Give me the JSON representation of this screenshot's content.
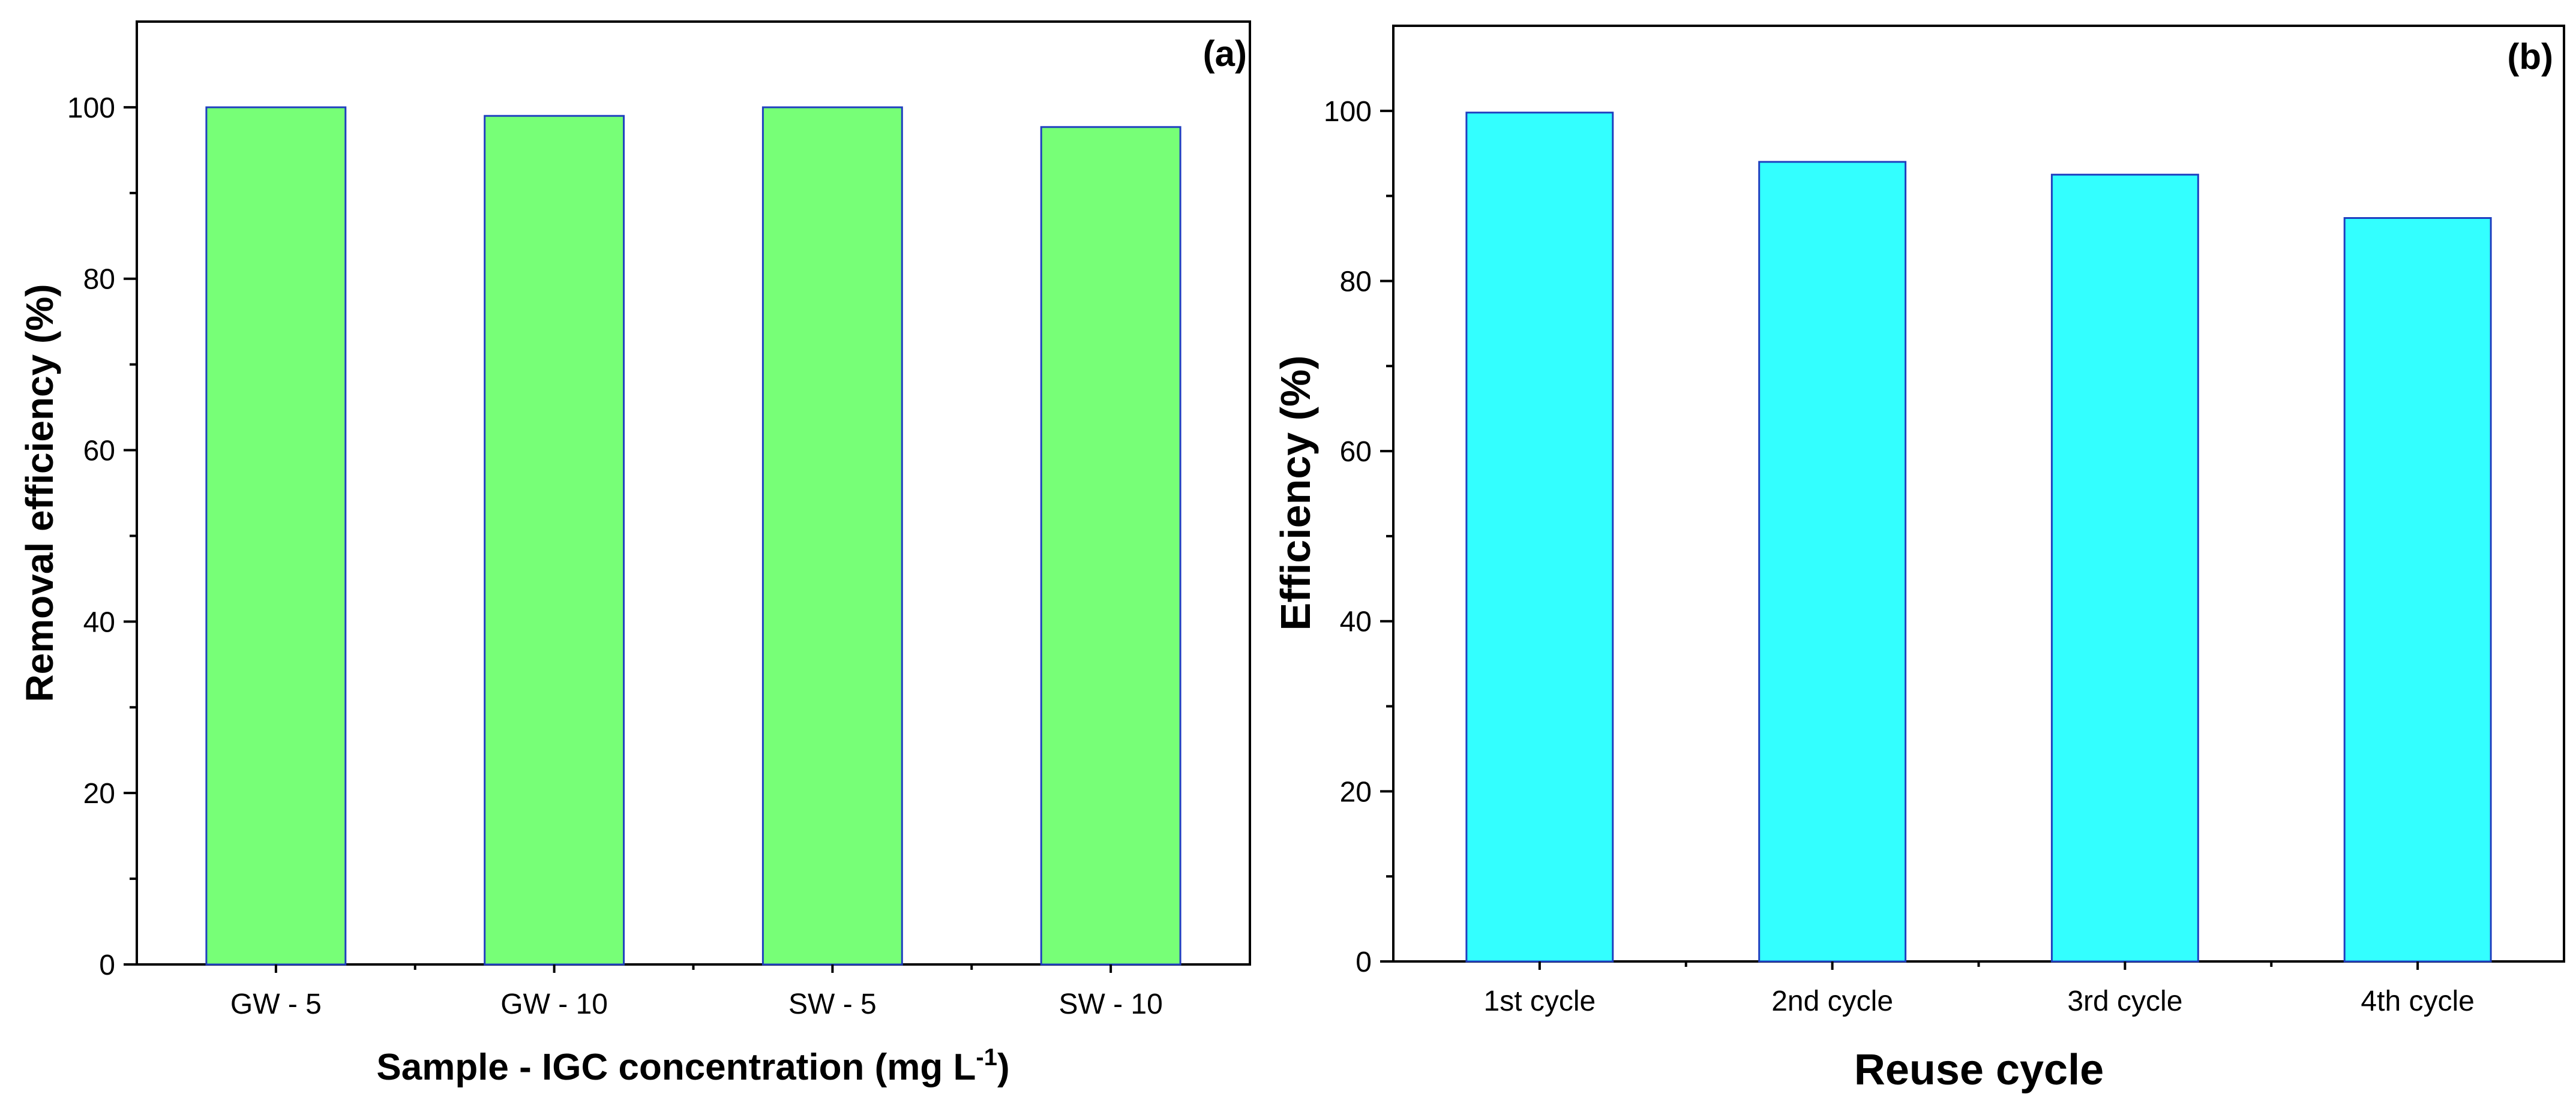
{
  "chart_data": [
    {
      "panel": "(a)",
      "type": "bar",
      "categories": [
        "GW - 5",
        "GW - 10",
        "SW - 5",
        "SW - 10"
      ],
      "values": [
        100,
        99,
        100,
        97.7
      ],
      "xlabel": "Sample - IGC concentration (mg L",
      "xlabel_unit_sup": "-1",
      "xlabel_close": ")",
      "ylabel": "Removal efficiency (%)",
      "ylim": [
        0,
        110
      ],
      "yticks": [
        0,
        20,
        40,
        60,
        80,
        100
      ],
      "bar_color": "#77ff77",
      "bar_edge_color": "#1f3fbf",
      "grid": false,
      "legend": "none"
    },
    {
      "panel": "(b)",
      "type": "bar",
      "categories": [
        "1st cycle",
        "2nd cycle",
        "3rd cycle",
        "4th cycle"
      ],
      "values": [
        99.8,
        94,
        92.5,
        87.4
      ],
      "xlabel": "Reuse cycle",
      "ylabel": "Efficiency (%)",
      "ylim": [
        0,
        110
      ],
      "yticks": [
        0,
        20,
        40,
        60,
        80,
        100
      ],
      "bar_color": "#33ffff",
      "bar_edge_color": "#1f3fbf",
      "grid": false,
      "legend": "none"
    }
  ]
}
